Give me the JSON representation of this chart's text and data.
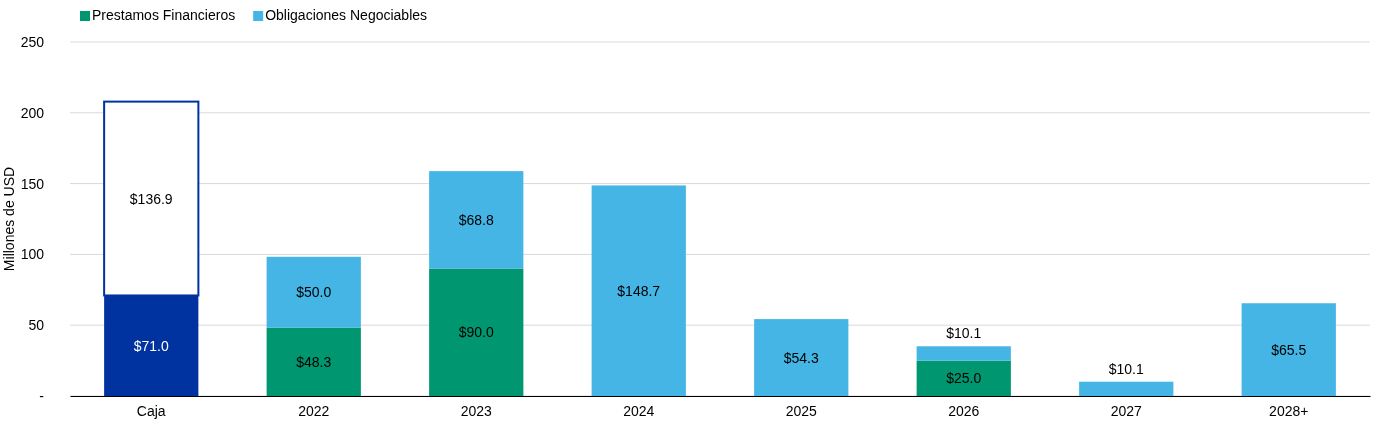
{
  "chart_data": {
    "type": "bar",
    "stacked": true,
    "ylabel": "Millones de USD",
    "categories": [
      "Caja",
      "2022",
      "2023",
      "2024",
      "2025",
      "2026",
      "2027",
      "2028+"
    ],
    "series": [
      {
        "name": "Prestamos Financieros",
        "color": "#009670",
        "values": [
          null,
          48.3,
          90.0,
          null,
          null,
          25.0,
          null,
          null
        ],
        "value_labels": [
          null,
          "$48.3",
          "$90.0",
          null,
          null,
          "$25.0",
          null,
          null
        ]
      },
      {
        "name": "Obligaciones Negociables",
        "color": "#44b5e5",
        "values": [
          null,
          50.0,
          68.8,
          148.7,
          54.3,
          10.1,
          10.1,
          65.5
        ],
        "value_labels": [
          null,
          "$50.0",
          "$68.8",
          "$148.7",
          "$54.3",
          "$10.1",
          "$10.1",
          "$65.5"
        ]
      },
      {
        "color": "#0033a0",
        "values": [
          71.0,
          null,
          null,
          null,
          null,
          null,
          null,
          null
        ],
        "value_labels": [
          "$71.0",
          null,
          null,
          null,
          null,
          null,
          null,
          null
        ]
      },
      {
        "color": "#ffffff",
        "values": [
          136.9,
          null,
          null,
          null,
          null,
          null,
          null,
          null
        ],
        "value_labels": [
          "$136.9",
          null,
          null,
          null,
          null,
          null,
          null,
          null
        ]
      }
    ],
    "ylim": [
      0,
      250
    ],
    "yticks": [
      {
        "value": 0,
        "label": "-"
      },
      50,
      100,
      150,
      200,
      250
    ],
    "grid": "y",
    "legend": "top left"
  }
}
